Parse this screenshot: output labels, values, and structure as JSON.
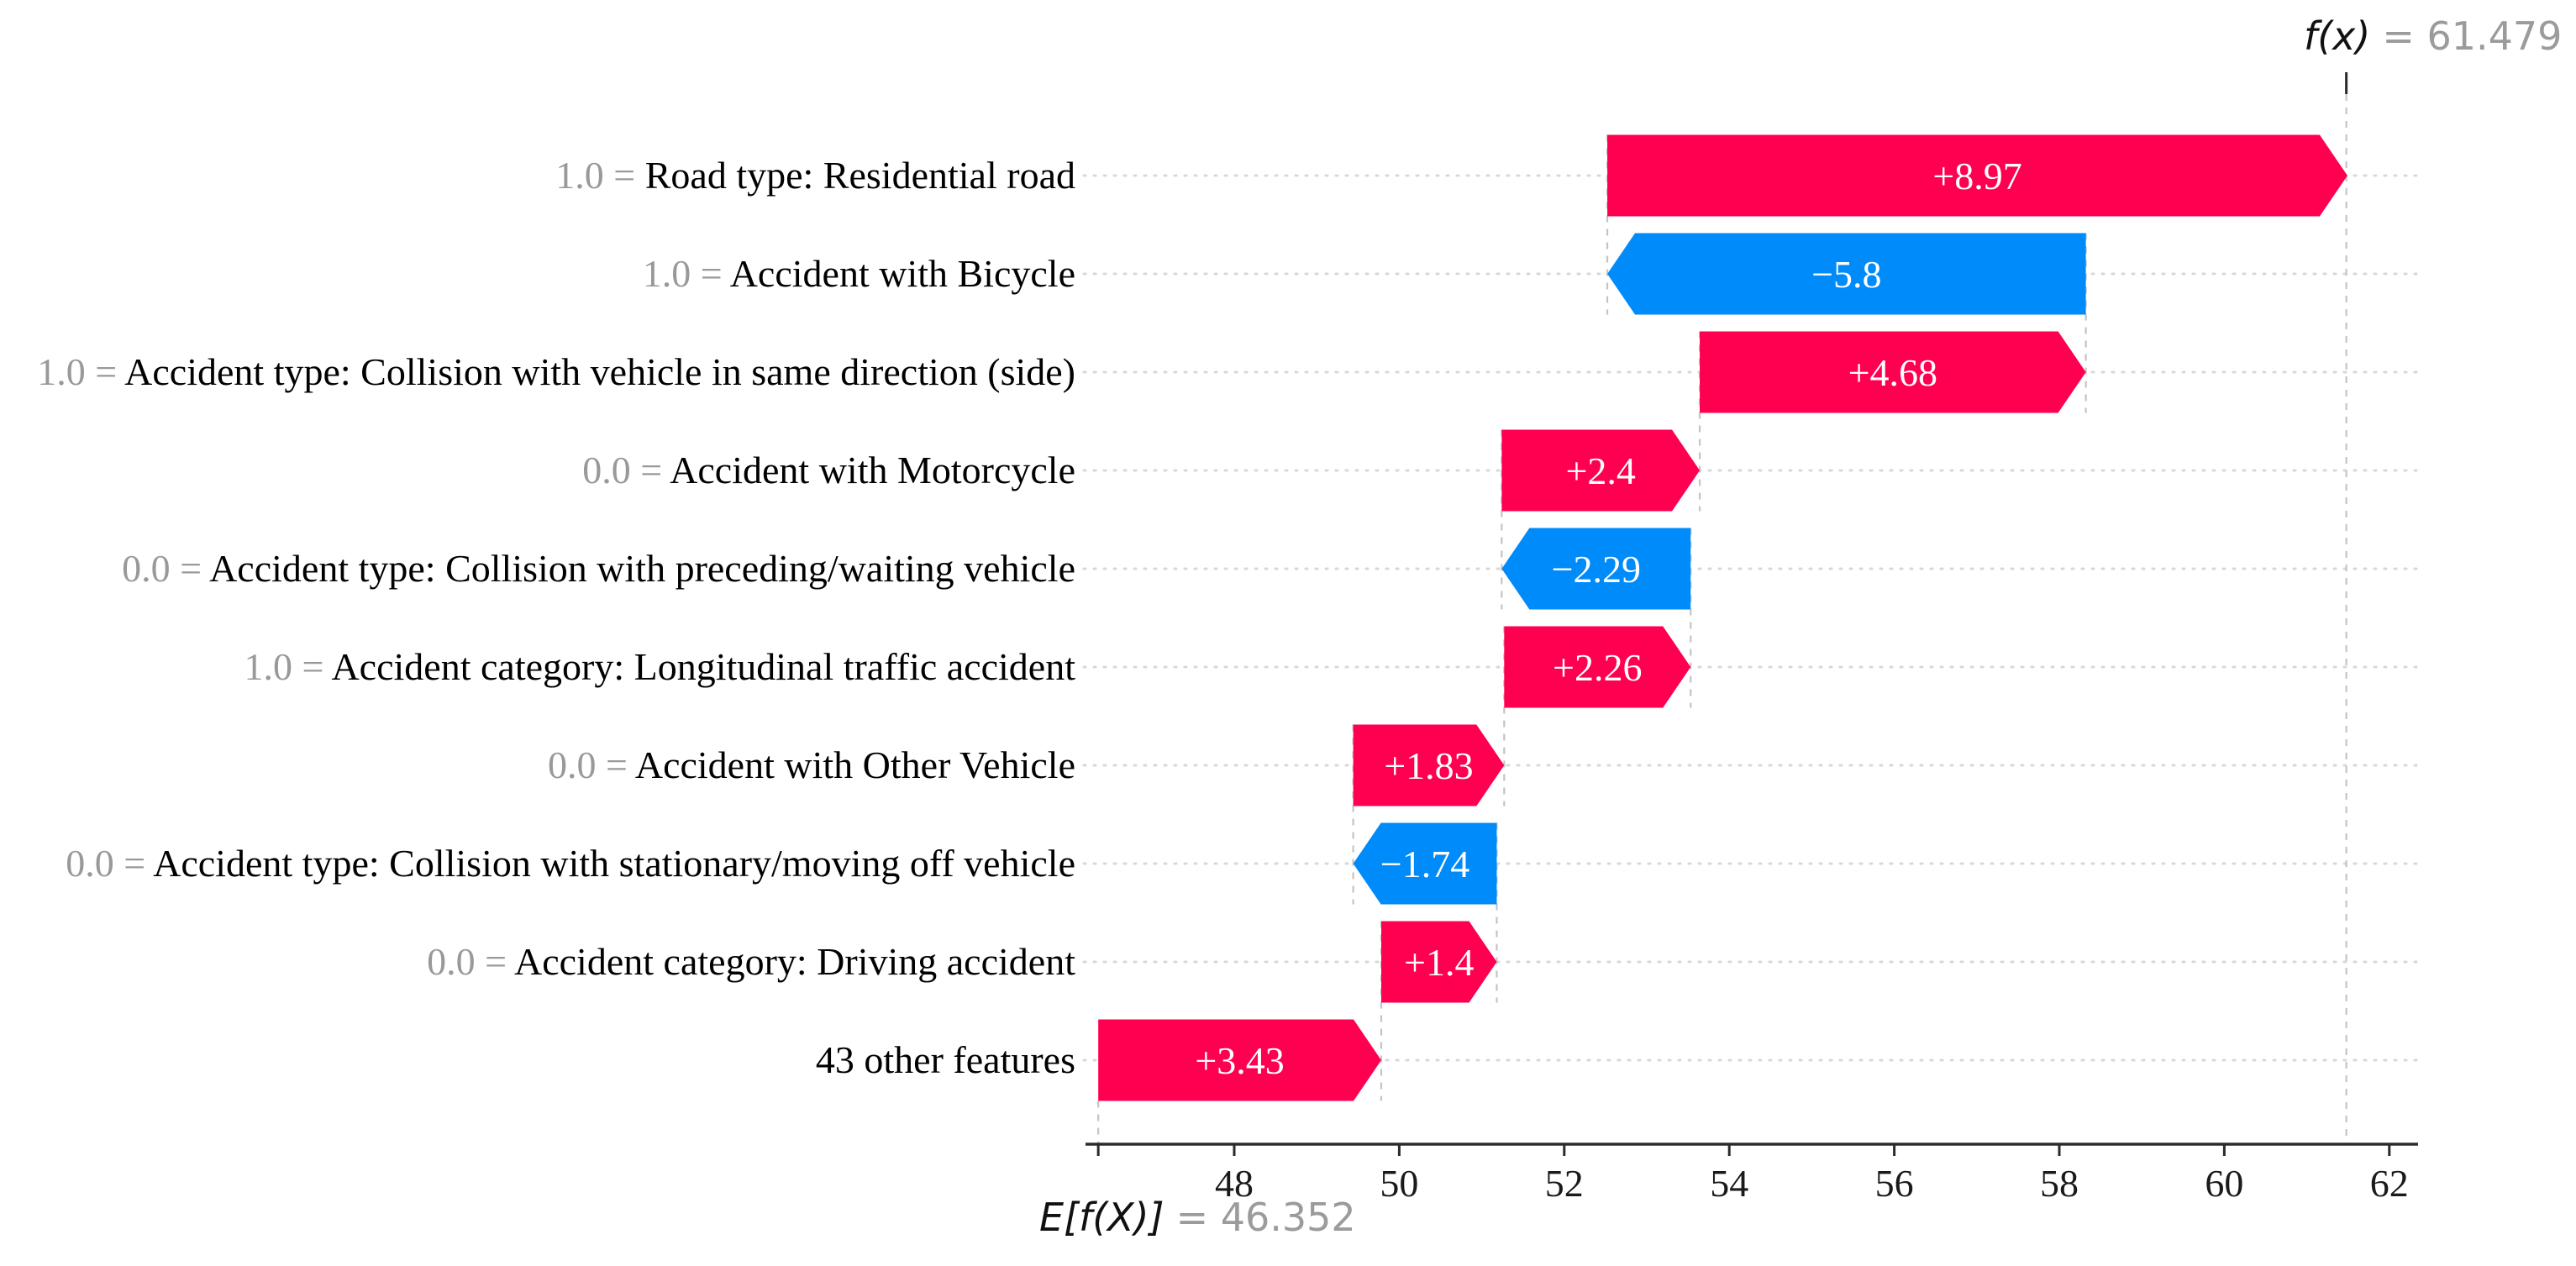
{
  "chart_data": {
    "type": "bar",
    "subtype": "shap-waterfall",
    "base_value": 46.352,
    "fx_value": 61.479,
    "fx_label": "f(x)",
    "fx_suffix": "= 61.479",
    "ef_label": "E[f(X)]",
    "ef_suffix": "= 46.352",
    "x_ticks": [
      48,
      50,
      52,
      54,
      56,
      58,
      60,
      62
    ],
    "xlim": [
      46.2,
      62.4
    ],
    "grid": "dotted-horizontal-rows",
    "legend": "none",
    "colors": {
      "positive": "#ff0051",
      "negative": "#008bfb",
      "grid_line": "#d8d8d8",
      "connector_line": "#c4c4c4",
      "axis_line": "#2b2b2b",
      "muted_text": "#999999",
      "bar_label_text": "#ffffff"
    },
    "features": [
      {
        "value": "1.0",
        "name": "Road type: Residential road",
        "contribution": 8.97,
        "label": "+8.97"
      },
      {
        "value": "1.0",
        "name": "Accident with Bicycle",
        "contribution": -5.8,
        "label": "−5.8"
      },
      {
        "value": "1.0",
        "name": "Accident type: Collision with vehicle in same direction (side)",
        "contribution": 4.68,
        "label": "+4.68"
      },
      {
        "value": "0.0",
        "name": "Accident with Motorcycle",
        "contribution": 2.4,
        "label": "+2.4"
      },
      {
        "value": "0.0",
        "name": "Accident type: Collision with preceding/waiting vehicle",
        "contribution": -2.29,
        "label": "−2.29"
      },
      {
        "value": "1.0",
        "name": "Accident category: Longitudinal traffic accident",
        "contribution": 2.26,
        "label": "+2.26"
      },
      {
        "value": "0.0",
        "name": "Accident with Other Vehicle",
        "contribution": 1.83,
        "label": "+1.83"
      },
      {
        "value": "0.0",
        "name": "Accident type: Collision with stationary/moving off vehicle",
        "contribution": -1.74,
        "label": "−1.74"
      },
      {
        "value": "0.0",
        "name": "Accident category: Driving accident",
        "contribution": 1.4,
        "label": "+1.4"
      },
      {
        "value": null,
        "name": "43 other features",
        "contribution": 3.43,
        "label": "+3.43"
      }
    ]
  }
}
